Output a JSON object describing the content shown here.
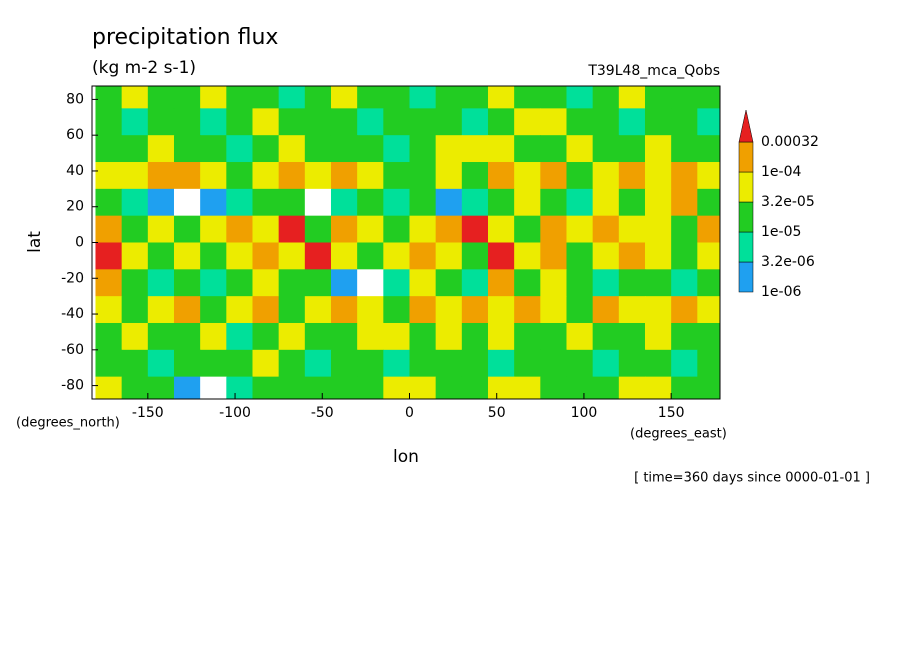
{
  "chart_data": {
    "type": "contour",
    "title": "precipitation flux",
    "subtitle": "(kg m-2 s-1)",
    "experiment": "T39L48_mca_Qobs",
    "x_label": "lon",
    "y_label": "lat",
    "x_units": "(degrees_east)",
    "y_units": "(degrees_north)",
    "time_note": "[ time=360 days since 0000-01-01 ]",
    "xlim": [
      -182,
      178
    ],
    "ylim": [
      -87.5,
      87.5
    ],
    "xticks": [
      -150,
      -100,
      -50,
      0,
      50,
      100,
      150
    ],
    "yticks": [
      -80,
      -60,
      -40,
      -20,
      0,
      20,
      40,
      60,
      80
    ],
    "levels": [
      {
        "value": 1e-06,
        "label": "1e-06"
      },
      {
        "value": 3.2e-06,
        "label": "3.2e-06"
      },
      {
        "value": 1e-05,
        "label": "1e-05"
      },
      {
        "value": 3.2e-05,
        "label": "3.2e-05"
      },
      {
        "value": 0.0001,
        "label": "1e-04"
      },
      0.00032
    ],
    "colors": [
      "#ffffff",
      "#1fa0f0",
      "#00e09a",
      "#22cc22",
      "#ecec00",
      "#f0a000",
      "#e62020"
    ],
    "x": [
      -172.5,
      -157.5,
      -142.5,
      -127.5,
      -112.5,
      -97.5,
      -82.5,
      -67.5,
      -52.5,
      -37.5,
      -22.5,
      -7.5,
      7.5,
      22.5,
      37.5,
      52.5,
      67.5,
      82.5,
      97.5,
      112.5,
      127.5,
      142.5,
      157.5,
      172.5
    ],
    "y": [
      82.5,
      67.5,
      52.5,
      37.5,
      22.5,
      7.5,
      -7.5,
      -22.5,
      -37.5,
      -52.5,
      -67.5,
      -82.5
    ],
    "z": [
      [
        2e-05,
        6e-05,
        2e-05,
        2e-05,
        6e-05,
        2e-05,
        2e-05,
        6e-06,
        2e-05,
        6e-05,
        2e-05,
        2e-05,
        6e-06,
        2e-05,
        2e-05,
        6e-05,
        2e-05,
        2e-05,
        6e-06,
        2e-05,
        6e-05,
        2e-05,
        2e-05,
        2e-05
      ],
      [
        2e-05,
        6e-06,
        2e-05,
        2e-05,
        6e-06,
        2e-05,
        6e-05,
        2e-05,
        2e-05,
        2e-05,
        6e-06,
        2e-05,
        2e-05,
        2e-05,
        6e-06,
        2e-05,
        6e-05,
        6e-05,
        2e-05,
        2e-05,
        6e-06,
        2e-05,
        2e-05,
        6e-06
      ],
      [
        2e-05,
        2e-05,
        6e-05,
        2e-05,
        2e-05,
        6e-06,
        2e-05,
        6e-05,
        2e-05,
        2e-05,
        2e-05,
        6e-06,
        2e-05,
        6e-05,
        6e-05,
        6e-05,
        2e-05,
        2e-05,
        6e-05,
        2e-05,
        2e-05,
        6e-05,
        2e-05,
        2e-05
      ],
      [
        6e-05,
        6e-05,
        0.0002,
        0.0002,
        6e-05,
        2e-05,
        6e-05,
        0.0002,
        6e-05,
        0.0002,
        6e-05,
        2e-05,
        2e-05,
        6e-05,
        2e-05,
        0.0002,
        6e-05,
        0.0002,
        2e-05,
        6e-05,
        0.0002,
        6e-05,
        0.0002,
        6e-05
      ],
      [
        2e-05,
        6e-06,
        2e-06,
        5e-07,
        2e-06,
        6e-06,
        2e-05,
        2e-05,
        5e-07,
        6e-06,
        2e-05,
        6e-06,
        2e-05,
        2e-06,
        6e-06,
        2e-05,
        6e-05,
        2e-05,
        6e-06,
        6e-05,
        2e-05,
        6e-05,
        0.0002,
        2e-05
      ],
      [
        0.0002,
        2e-05,
        6e-05,
        2e-05,
        6e-05,
        0.0002,
        6e-05,
        0.0004,
        2e-05,
        0.0002,
        6e-05,
        2e-05,
        6e-05,
        0.0002,
        0.0004,
        6e-05,
        2e-05,
        0.0002,
        6e-05,
        0.0002,
        6e-05,
        6e-05,
        2e-05,
        0.0002
      ],
      [
        0.0004,
        6e-05,
        2e-05,
        6e-05,
        2e-05,
        6e-05,
        0.0002,
        6e-05,
        0.0004,
        6e-05,
        2e-05,
        6e-05,
        0.0002,
        6e-05,
        2e-05,
        0.0004,
        6e-05,
        0.0002,
        2e-05,
        6e-05,
        0.0002,
        6e-05,
        2e-05,
        6e-05
      ],
      [
        0.0002,
        2e-05,
        6e-06,
        2e-05,
        6e-06,
        2e-05,
        6e-05,
        2e-05,
        2e-05,
        2e-06,
        5e-07,
        6e-06,
        6e-05,
        2e-05,
        6e-06,
        0.0002,
        2e-05,
        6e-05,
        2e-05,
        6e-06,
        2e-05,
        2e-05,
        6e-06,
        2e-05
      ],
      [
        6e-05,
        2e-05,
        6e-05,
        0.0002,
        2e-05,
        6e-05,
        0.0002,
        2e-05,
        6e-05,
        0.0002,
        6e-05,
        2e-05,
        0.0002,
        6e-05,
        0.0002,
        6e-05,
        0.0002,
        6e-05,
        2e-05,
        0.0002,
        6e-05,
        6e-05,
        0.0002,
        6e-05
      ],
      [
        2e-05,
        6e-05,
        2e-05,
        2e-05,
        6e-05,
        6e-06,
        2e-05,
        6e-05,
        2e-05,
        2e-05,
        6e-05,
        6e-05,
        2e-05,
        6e-05,
        2e-05,
        6e-05,
        2e-05,
        2e-05,
        6e-05,
        2e-05,
        2e-05,
        6e-05,
        2e-05,
        2e-05
      ],
      [
        2e-05,
        2e-05,
        6e-06,
        2e-05,
        2e-05,
        2e-05,
        6e-05,
        2e-05,
        6e-06,
        2e-05,
        2e-05,
        6e-06,
        2e-05,
        2e-05,
        2e-05,
        6e-06,
        2e-05,
        2e-05,
        2e-05,
        6e-06,
        2e-05,
        2e-05,
        6e-06,
        2e-05
      ],
      [
        6e-05,
        2e-05,
        2e-05,
        2e-06,
        5e-07,
        6e-06,
        2e-05,
        2e-05,
        2e-05,
        2e-05,
        2e-05,
        6e-05,
        6e-05,
        2e-05,
        2e-05,
        6e-05,
        6e-05,
        2e-05,
        2e-05,
        2e-05,
        6e-05,
        6e-05,
        2e-05,
        2e-05
      ]
    ]
  }
}
